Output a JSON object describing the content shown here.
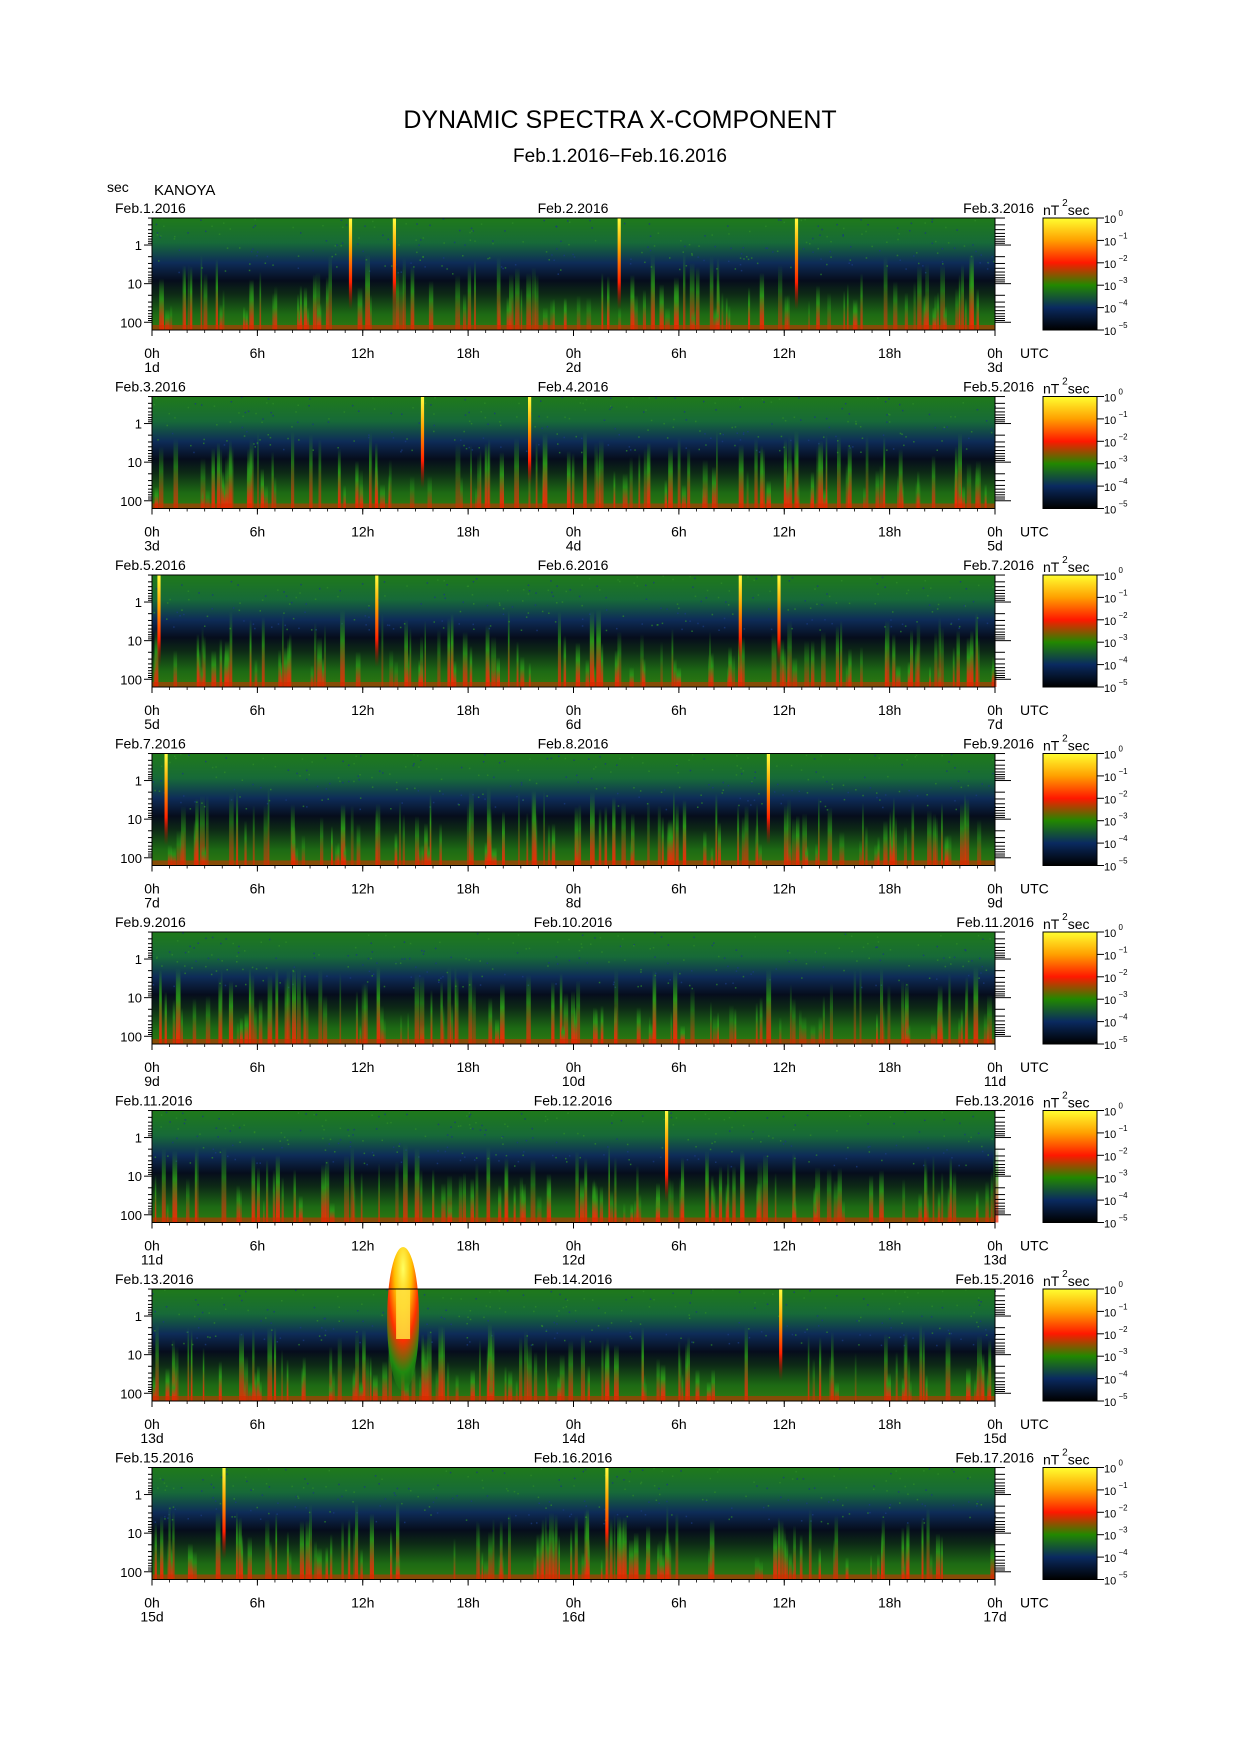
{
  "chart_data": {
    "type": "heatmap",
    "title": "DYNAMIC SPECTRA X-COMPONENT",
    "subtitle": "Feb.1.2016−Feb.16.2016",
    "station": "KANOYA",
    "yunit": "sec",
    "xunit": "UTC",
    "colorbar_unit": {
      "base": "nT",
      "sup": "2",
      "tail": "sec"
    },
    "colorbar_levels": [
      {
        "base": "10",
        "exp": "0"
      },
      {
        "base": "10",
        "exp": "−1"
      },
      {
        "base": "10",
        "exp": "−2"
      },
      {
        "base": "10",
        "exp": "−3"
      },
      {
        "base": "10",
        "exp": "−4"
      },
      {
        "base": "10",
        "exp": "−5"
      }
    ],
    "colorbar_colors": [
      "#ffff30",
      "#ffa000",
      "#ff1800",
      "#228800",
      "#0a2a60",
      "#000000"
    ],
    "y_ticks": [
      "1",
      "10",
      "100"
    ],
    "y_scale": "log",
    "x_ticks": [
      "0h",
      "6h",
      "12h",
      "18h",
      "0h",
      "6h",
      "12h",
      "18h",
      "0h"
    ],
    "panels": [
      {
        "start_label": "Feb.1.2016",
        "mid_label": "Feb.2.2016",
        "end_label": "Feb.3.2016",
        "day_labels": [
          "1d",
          "2d",
          "3d"
        ],
        "events": [
          {
            "t": 11.3,
            "kind": "pulse"
          },
          {
            "t": 13.8,
            "kind": "pulse"
          },
          {
            "t": 26.6,
            "kind": "pulse"
          },
          {
            "t": 36.7,
            "kind": "pulse"
          }
        ]
      },
      {
        "start_label": "Feb.3.2016",
        "mid_label": "Feb.4.2016",
        "end_label": "Feb.5.2016",
        "day_labels": [
          "3d",
          "4d",
          "5d"
        ],
        "events": [
          {
            "t": 15.4,
            "kind": "pulse"
          },
          {
            "t": 21.5,
            "kind": "pulse"
          }
        ]
      },
      {
        "start_label": "Feb.5.2016",
        "mid_label": "Feb.6.2016",
        "end_label": "Feb.7.2016",
        "day_labels": [
          "5d",
          "6d",
          "7d"
        ],
        "events": [
          {
            "t": 0.4,
            "kind": "pulse"
          },
          {
            "t": 12.8,
            "kind": "pulse"
          },
          {
            "t": 33.5,
            "kind": "pulse"
          },
          {
            "t": 35.7,
            "kind": "pulse"
          }
        ]
      },
      {
        "start_label": "Feb.7.2016",
        "mid_label": "Feb.8.2016",
        "end_label": "Feb.9.2016",
        "day_labels": [
          "7d",
          "8d",
          "9d"
        ],
        "events": [
          {
            "t": 0.8,
            "kind": "pulse"
          },
          {
            "t": 35.1,
            "kind": "pulse"
          }
        ]
      },
      {
        "start_label": "Feb.9.2016",
        "mid_label": "Feb.10.2016",
        "end_label": "Feb.11.2016",
        "day_labels": [
          "9d",
          "10d",
          "11d"
        ],
        "events": []
      },
      {
        "start_label": "Feb.11.2016",
        "mid_label": "Feb.12.2016",
        "end_label": "Feb.13.2016",
        "day_labels": [
          "11d",
          "12d",
          "13d"
        ],
        "events": [
          {
            "t": 29.3,
            "kind": "pulse"
          }
        ]
      },
      {
        "start_label": "Feb.13.2016",
        "mid_label": "Feb.14.2016",
        "end_label": "Feb.15.2016",
        "day_labels": [
          "13d",
          "14d",
          "15d"
        ],
        "events": [
          {
            "t": 14.3,
            "kind": "storm"
          },
          {
            "t": 35.8,
            "kind": "pulse"
          }
        ]
      },
      {
        "start_label": "Feb.15.2016",
        "mid_label": "Feb.16.2016",
        "end_label": "Feb.17.2016",
        "day_labels": [
          "15d",
          "16d",
          "17d"
        ],
        "events": [
          {
            "t": 4.1,
            "kind": "pulse"
          },
          {
            "t": 25.9,
            "kind": "pulse"
          }
        ]
      }
    ]
  }
}
